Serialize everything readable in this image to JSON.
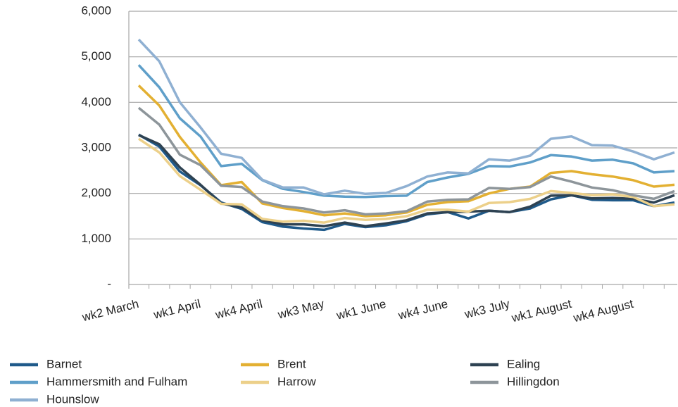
{
  "chart_data": {
    "type": "line",
    "categories": [
      "wk2 March",
      null,
      null,
      "wk1 April",
      null,
      null,
      "wk4 April",
      null,
      null,
      "wk3 May",
      null,
      null,
      "wk1 June",
      null,
      null,
      "wk4 June",
      null,
      null,
      "wk3 July",
      null,
      null,
      "wk1 August",
      null,
      null,
      "wk4 August",
      null,
      null
    ],
    "ylim": [
      0,
      6000
    ],
    "yticks": [
      {
        "value": 0,
        "label": "-"
      },
      {
        "value": 1000,
        "label": "1,000"
      },
      {
        "value": 2000,
        "label": "2,000"
      },
      {
        "value": 3000,
        "label": "3,000"
      },
      {
        "value": 4000,
        "label": "4,000"
      },
      {
        "value": 5000,
        "label": "5,000"
      },
      {
        "value": 6000,
        "label": "6,000"
      }
    ],
    "grid": true,
    "legend": "bottom",
    "series": [
      {
        "name": "Barnet",
        "color": "#1f5a8a",
        "values": [
          3290,
          3030,
          2480,
          2180,
          1800,
          1660,
          1370,
          1270,
          1230,
          1200,
          1330,
          1260,
          1300,
          1390,
          1540,
          1590,
          1450,
          1620,
          1590,
          1670,
          1870,
          1960,
          1860,
          1850,
          1850,
          1720,
          1800
        ]
      },
      {
        "name": "Brent",
        "color": "#e3b032",
        "values": [
          4370,
          3930,
          3240,
          2680,
          2180,
          2250,
          1780,
          1680,
          1610,
          1520,
          1560,
          1500,
          1520,
          1580,
          1750,
          1810,
          1830,
          2000,
          2100,
          2150,
          2450,
          2490,
          2420,
          2370,
          2290,
          2150,
          2190
        ]
      },
      {
        "name": "Ealing",
        "color": "#2e4252",
        "values": [
          3280,
          3080,
          2570,
          2190,
          1780,
          1690,
          1410,
          1320,
          1320,
          1280,
          1360,
          1280,
          1340,
          1410,
          1560,
          1590,
          1600,
          1620,
          1590,
          1710,
          1950,
          1960,
          1890,
          1900,
          1880,
          1800,
          1960
        ]
      },
      {
        "name": "Hammersmith and Fulham",
        "color": "#5f9fc9",
        "values": [
          4820,
          4330,
          3650,
          3250,
          2600,
          2650,
          2290,
          2100,
          2030,
          1950,
          1930,
          1920,
          1940,
          1950,
          2250,
          2350,
          2430,
          2600,
          2590,
          2680,
          2840,
          2810,
          2720,
          2740,
          2660,
          2460,
          2490
        ]
      },
      {
        "name": "Harrow",
        "color": "#ecd08a",
        "values": [
          3200,
          2900,
          2380,
          2080,
          1770,
          1760,
          1440,
          1380,
          1400,
          1360,
          1460,
          1420,
          1440,
          1500,
          1640,
          1640,
          1600,
          1790,
          1810,
          1880,
          2050,
          2010,
          1960,
          1980,
          1920,
          1720,
          1760
        ]
      },
      {
        "name": "Hillingdon",
        "color": "#8d959a",
        "values": [
          3880,
          3510,
          2850,
          2620,
          2170,
          2140,
          1820,
          1720,
          1670,
          1580,
          1630,
          1540,
          1560,
          1610,
          1820,
          1860,
          1870,
          2120,
          2100,
          2140,
          2370,
          2260,
          2130,
          2070,
          1960,
          1880,
          2050
        ]
      },
      {
        "name": "Hounslow",
        "color": "#8fb0d2",
        "values": [
          5380,
          4900,
          4000,
          3450,
          2870,
          2780,
          2300,
          2130,
          2130,
          1980,
          2060,
          1990,
          2010,
          2160,
          2370,
          2460,
          2440,
          2750,
          2720,
          2830,
          3200,
          3250,
          3060,
          3050,
          2920,
          2750,
          2900
        ]
      }
    ]
  }
}
